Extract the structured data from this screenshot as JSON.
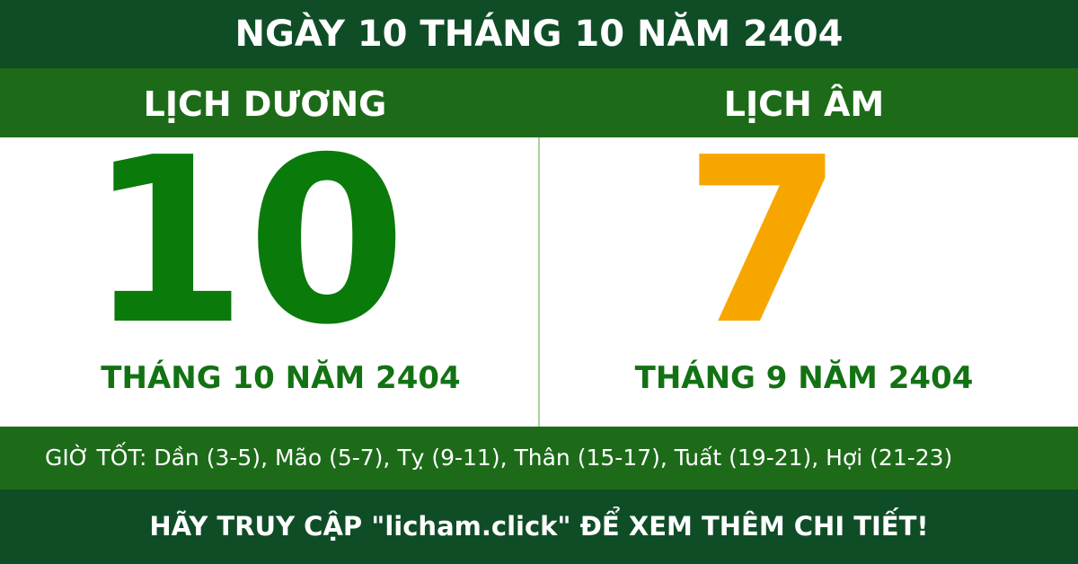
{
  "header": {
    "title": "NGÀY 10 THÁNG 10 NĂM 2404"
  },
  "solar": {
    "heading": "LỊCH DƯƠNG",
    "day": "10",
    "month_year": "THÁNG 10 NĂM 2404"
  },
  "lunar": {
    "heading": "LỊCH ÂM",
    "day": "7",
    "month_year": "THÁNG 9 NĂM 2404"
  },
  "good_hours": "GIỜ TỐT: Dần (3-5), Mão (5-7), Tỵ (9-11), Thân (15-17), Tuất (19-21), Hợi (21-23)",
  "footer": "HÃY TRUY CẬP \"licham.click\" ĐỂ XEM THÊM CHI TIẾT!"
}
